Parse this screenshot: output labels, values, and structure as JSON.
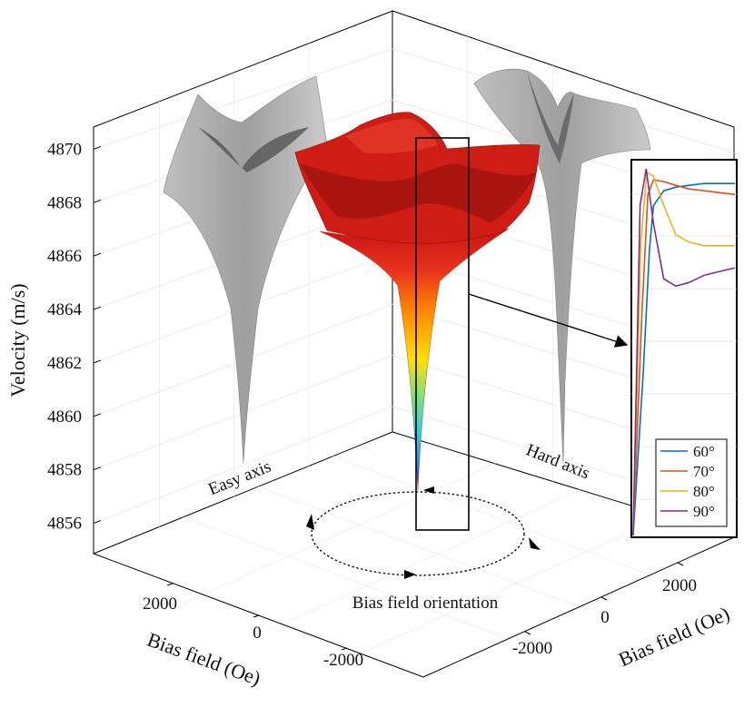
{
  "chart_data": [
    {
      "type": "surface",
      "title": "",
      "zlabel": "Velocity (m/s)",
      "xlabel": "Bias field (Oe)",
      "ylabel": "Bias field (Oe)",
      "z_ticks": [
        "4856",
        "4858",
        "4860",
        "4862",
        "4864",
        "4866",
        "4868",
        "4870"
      ],
      "x_ticks": [
        "2000",
        "0",
        "-2000"
      ],
      "y_ticks": [
        "-2000",
        "0",
        "2000"
      ],
      "zlim": [
        4855,
        4871
      ],
      "xlim": [
        -3000,
        3000
      ],
      "ylim": [
        -3000,
        3000
      ],
      "z_min": 4856.2,
      "z_max": 4869.8,
      "annotations": {
        "easy_axis": "Easy axis",
        "hard_axis": "Hard axis",
        "orientation": "Bias field orientation"
      },
      "colormap": [
        "#1f1fb4",
        "#1e90ff",
        "#22d3e6",
        "#7fe07a",
        "#ffe000",
        "#ff8a00",
        "#e8321e",
        "#c81414"
      ]
    },
    {
      "type": "line",
      "title": "",
      "xlabel": "",
      "ylabel": "",
      "ylim": [
        0,
        1
      ],
      "series": [
        {
          "name": "60°",
          "color": "#0072BD",
          "values": [
            0.0,
            0.45,
            0.78,
            0.9,
            0.94,
            0.95,
            0.955,
            0.96,
            0.96,
            0.96
          ]
        },
        {
          "name": "70°",
          "color": "#D95319",
          "values": [
            0.0,
            0.6,
            0.93,
            0.97,
            0.965,
            0.955,
            0.945,
            0.94,
            0.935,
            0.93
          ]
        },
        {
          "name": "80°",
          "color": "#EDB120",
          "values": [
            0.0,
            0.8,
            0.99,
            0.98,
            0.9,
            0.82,
            0.8,
            0.79,
            0.79,
            0.79
          ]
        },
        {
          "name": "90°",
          "color": "#7E2F8E",
          "values": [
            0.0,
            0.9,
            1.0,
            0.85,
            0.7,
            0.68,
            0.69,
            0.71,
            0.72,
            0.73
          ]
        }
      ],
      "legend_position": "bottom-right"
    }
  ]
}
